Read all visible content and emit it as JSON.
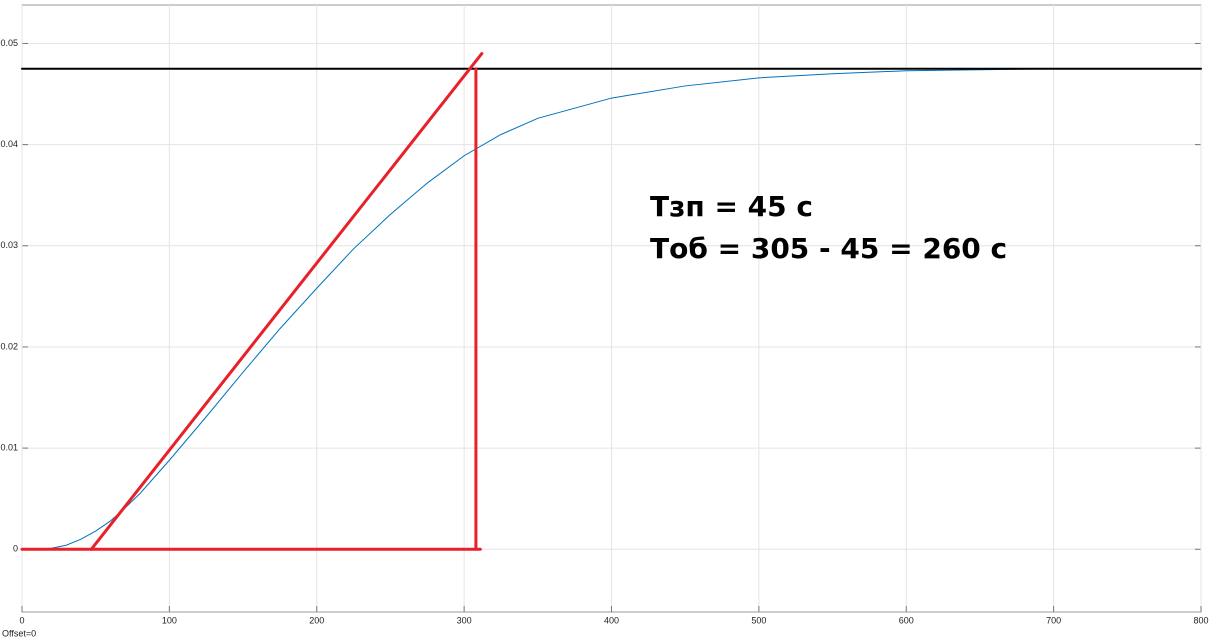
{
  "chart_data": {
    "type": "line",
    "xlim": [
      0,
      800
    ],
    "xticks": [
      0,
      100,
      200,
      300,
      400,
      500,
      600,
      700,
      800
    ],
    "ylim": [
      -0.0062,
      0.0538
    ],
    "yticks": [
      0,
      0.01,
      0.02,
      0.03,
      0.04,
      0.05
    ],
    "grid": true,
    "series": [
      {
        "color": "#0072bd",
        "width": 1,
        "x": [
          0,
          10,
          20,
          30,
          40,
          50,
          60,
          70,
          80,
          100,
          125,
          150,
          175,
          200,
          225,
          250,
          275,
          300,
          325,
          350,
          400,
          450,
          500,
          550,
          600,
          650,
          700
        ],
        "values": [
          0,
          2e-05,
          0.0001,
          0.0004,
          0.001,
          0.0018,
          0.0028,
          0.0041,
          0.0055,
          0.0088,
          0.0131,
          0.0175,
          0.0218,
          0.0258,
          0.0297,
          0.0331,
          0.0362,
          0.0389,
          0.041,
          0.0426,
          0.0446,
          0.0458,
          0.0466,
          0.047,
          0.0473,
          0.0474,
          0.0475
        ]
      },
      {
        "color": "#000000",
        "width": 2,
        "x": [
          0,
          800
        ],
        "values": [
          0.0475,
          0.0475
        ]
      },
      {
        "color": "#e8202a",
        "width": 3,
        "x": [
          47,
          312
        ],
        "values": [
          0,
          0.049
        ]
      },
      {
        "color": "#e8202a",
        "width": 3,
        "x": [
          308,
          308
        ],
        "values": [
          0,
          0.0475
        ]
      },
      {
        "color": "#e8202a",
        "width": 3,
        "x": [
          0,
          311
        ],
        "values": [
          0,
          0
        ]
      }
    ],
    "annotations": [
      "Тзп = 45 с",
      "Тоб = 305 - 45 = 260 с"
    ],
    "footer": "Offset=0"
  }
}
